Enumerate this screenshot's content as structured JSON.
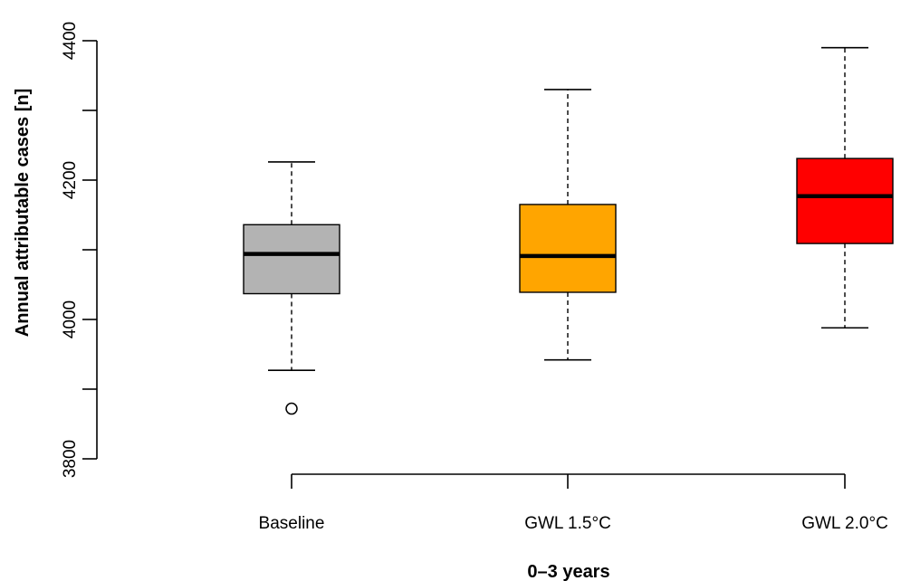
{
  "chart_data": {
    "type": "boxplot",
    "title": "",
    "xlabel": "0–3 years",
    "ylabel": "Annual attributable cases [n]",
    "ylim": [
      3800,
      4400
    ],
    "yticks": [
      3800,
      4000,
      4200,
      4400
    ],
    "yminor_ticks": [
      3900,
      4100,
      4300
    ],
    "grid": false,
    "legend": "none",
    "categories": [
      "Baseline",
      "GWL 1.5°C",
      "GWL 2.0°C"
    ],
    "boxes": [
      {
        "name": "Baseline",
        "whisker_low": 3927,
        "q1": 4037,
        "median": 4094,
        "q3": 4136,
        "whisker_high": 4226,
        "outliers": [
          3872
        ],
        "color": "#b3b3b3"
      },
      {
        "name": "GWL 1.5°C",
        "whisker_low": 3942,
        "q1": 4039,
        "median": 4091,
        "q3": 4165,
        "whisker_high": 4330,
        "outliers": [],
        "color": "#ffa500"
      },
      {
        "name": "GWL 2.0°C",
        "whisker_low": 3988,
        "q1": 4109,
        "median": 4177,
        "q3": 4231,
        "whisker_high": 4390,
        "outliers": [],
        "color": "#ff0000"
      }
    ]
  }
}
